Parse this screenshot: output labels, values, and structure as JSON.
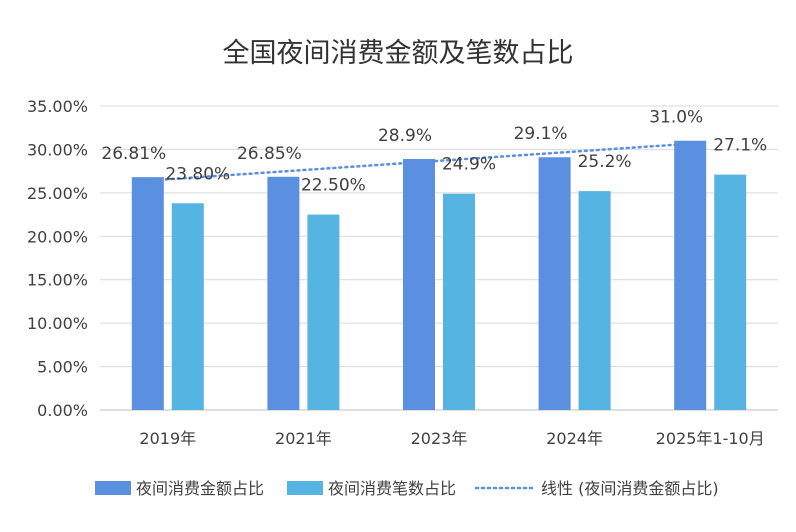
{
  "chart_data": {
    "type": "bar",
    "title": "全国夜间消费金额及笔数占比",
    "categories": [
      "2019年",
      "2021年",
      "2023年",
      "2024年",
      "2025年1-10月"
    ],
    "series": [
      {
        "name": "夜间消费金额占比",
        "values": [
          26.81,
          26.85,
          28.9,
          29.1,
          31.0
        ],
        "labels": [
          "26.81%",
          "26.85%",
          "28.9%",
          "29.1%",
          "31.0%"
        ],
        "color": "#5b8fe0"
      },
      {
        "name": "夜间消费笔数占比",
        "values": [
          23.8,
          22.5,
          24.9,
          25.2,
          27.1
        ],
        "labels": [
          "23.80%",
          "22.50%",
          "24.9%",
          "25.2%",
          "27.1%"
        ],
        "color": "#56b4e2"
      }
    ],
    "trendline": {
      "name": "线性 (夜间消费金额占比)",
      "of_series": 0,
      "type": "linear",
      "color": "#5b8fe0"
    },
    "y_ticks": [
      "0.00%",
      "5.00%",
      "10.00%",
      "15.00%",
      "20.00%",
      "25.00%",
      "30.00%",
      "35.00%"
    ],
    "ylim": [
      0,
      35
    ],
    "grid": true,
    "legend": "bottom"
  }
}
